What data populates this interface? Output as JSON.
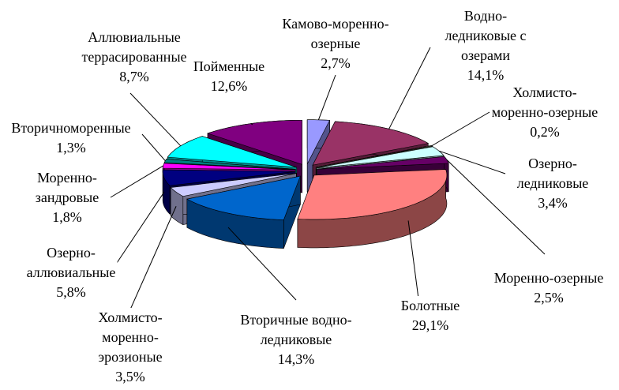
{
  "chart_data": {
    "type": "pie",
    "categories": [
      "Камово-моренно-\nозерные",
      "Водно-\nледниковые с\nозерами",
      "Холмисто-\nморенно-озерные",
      "Озерно-\nледниковые",
      "Моренно-озерные",
      "Болотные",
      "Вторичные водно-\nледниковые",
      "Холмисто-\nморенно-\nэрозионые",
      "Озерно-\nаллювиальные",
      "Моренно-\nзандровые",
      "Вторичноморенные",
      "Аллювиальные\nтеррасированные",
      "Пойменные"
    ],
    "values": [
      2.7,
      14.1,
      0.2,
      3.4,
      2.5,
      29.1,
      14.3,
      3.5,
      5.8,
      1.8,
      1.3,
      8.7,
      12.6
    ],
    "value_labels": [
      "2,7%",
      "14,1%",
      "0,2%",
      "3,4%",
      "2,5%",
      "29,1%",
      "14,3%",
      "3,5%",
      "5,8%",
      "1,8%",
      "1,3%",
      "8,7%",
      "12,6%"
    ],
    "colors": [
      "#9999ff",
      "#993366",
      "#ffffcc",
      "#ccffff",
      "#660066",
      "#ff8080",
      "#0066cc",
      "#ccccff",
      "#000080",
      "#ff00ff",
      "#008080",
      "#00ffff",
      "#800080"
    ]
  }
}
